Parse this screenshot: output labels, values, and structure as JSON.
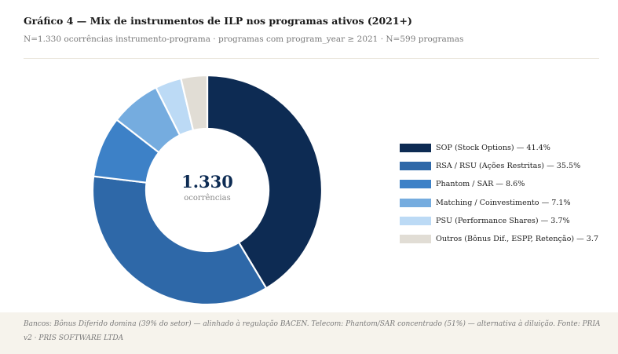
{
  "header": {
    "title": "Gráfico 4 — Mix de instrumentos de ILP nos programas ativos (2021+)",
    "subtitle": "N=1.330 ocorrências instrumento-programa · programas com program_year ≥ 2021 · N=599 programas"
  },
  "center": {
    "value": "1.330",
    "label": "ocorrências"
  },
  "chart_data": {
    "type": "pie",
    "variant": "donut",
    "title": "Gráfico 4 — Mix de instrumentos de ILP nos programas ativos (2021+)",
    "slices": [
      {
        "name": "SOP (Stock Options)",
        "value": 41.4,
        "color": "#0d2b53",
        "legend_label": "SOP (Stock Options) — 41.4%"
      },
      {
        "name": "RSA / RSU (Ações Restritas)",
        "value": 35.5,
        "color": "#2e68a8",
        "legend_label": "RSA / RSU (Ações Restritas) — 35.5%"
      },
      {
        "name": "Phantom / SAR",
        "value": 8.6,
        "color": "#3d81c7",
        "legend_label": "Phantom / SAR — 8.6%"
      },
      {
        "name": "Matching / Coinvestimento",
        "value": 7.1,
        "color": "#75acdf",
        "legend_label": "Matching / Coinvestimento — 7.1%"
      },
      {
        "name": "PSU (Performance Shares)",
        "value": 3.7,
        "color": "#bcdaf5",
        "legend_label": "PSU (Performance Shares) — 3.7%"
      },
      {
        "name": "Outros (Bônus Dif., ESPP, Retenção)",
        "value": 3.7,
        "color": "#e1ddd5",
        "legend_label": "Outros (Bônus Dif., ESPP, Retenção) — 3.7"
      }
    ],
    "legend_position": "right",
    "start_angle": "top, clockwise"
  },
  "footer": {
    "note": "Bancos: Bônus Diferido domina (39% do setor) — alinhado à regulação BACEN. Telecom: Phantom/SAR concentrado (51%) — alternativa à diluição. Fonte: PRIA v2 · PRIS SOFTWARE LTDA"
  }
}
